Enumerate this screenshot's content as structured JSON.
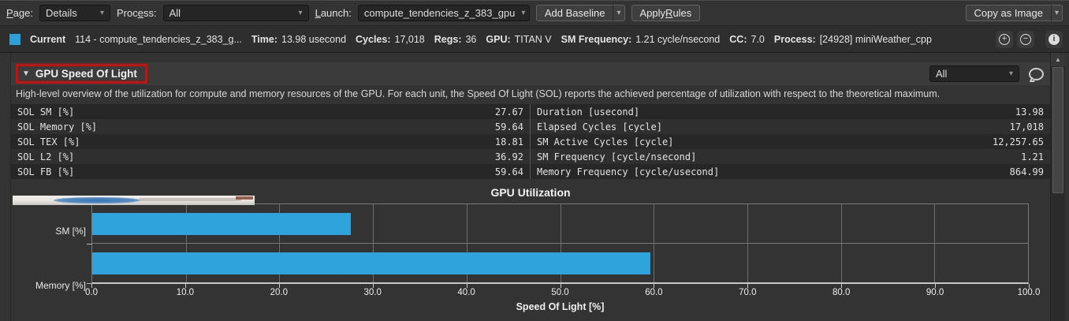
{
  "icons": {
    "dropdown_arrow": "▾",
    "collapse_triangle": "▼",
    "add_circle": "+",
    "remove_circle": "−",
    "info": "i",
    "scroll_up": "▲",
    "comment": "speech-bubble"
  },
  "toolbar": {
    "page_label": {
      "pre": "",
      "key": "P",
      "post": "age:"
    },
    "page_value": "Details",
    "process_label": {
      "pre": "Proc",
      "key": "e",
      "post": "ss:"
    },
    "process_value": "All",
    "launch_label": {
      "pre": "",
      "key": "L",
      "post": "aunch:"
    },
    "launch_value": "compute_tendencies_z_383_gpu",
    "add_baseline_label": "Add Baseline",
    "apply_rules_label": {
      "pre": "Apply ",
      "key": "R",
      "post": "ules"
    },
    "copy_as_image_label": "Copy as Image"
  },
  "current_row": {
    "swatch_color": "#2da0d9",
    "label": "Current",
    "kernel": "114 - compute_tendencies_z_383_g...",
    "metrics": [
      {
        "label": "Time:",
        "value": "13.98 usecond"
      },
      {
        "label": "Cycles:",
        "value": "17,018"
      },
      {
        "label": "Regs:",
        "value": "36"
      },
      {
        "label": "GPU:",
        "value": "TITAN V"
      },
      {
        "label": "SM Frequency:",
        "value": "1.21 cycle/nsecond"
      },
      {
        "label": "CC:",
        "value": "7.0"
      },
      {
        "label": "Process:",
        "value": "[24928] miniWeather_cpp"
      }
    ]
  },
  "section": {
    "title": "GPU Speed Of Light",
    "filter_value": "All",
    "description": "High-level overview of the utilization for compute and memory resources of the GPU. For each unit, the Speed Of Light (SOL) reports the achieved percentage of utilization with respect to the theoretical maximum."
  },
  "metrics_table": {
    "left": [
      {
        "name": "SOL SM [%]",
        "value": "27.67"
      },
      {
        "name": "SOL Memory [%]",
        "value": "59.64"
      },
      {
        "name": "SOL TEX [%]",
        "value": "18.81"
      },
      {
        "name": "SOL L2 [%]",
        "value": "36.92"
      },
      {
        "name": "SOL FB [%]",
        "value": "59.64"
      }
    ],
    "right": [
      {
        "name": "Duration [usecond]",
        "value": "13.98"
      },
      {
        "name": "Elapsed Cycles [cycle]",
        "value": "17,018"
      },
      {
        "name": "SM Active Cycles [cycle]",
        "value": "12,257.65"
      },
      {
        "name": "SM Frequency [cycle/nsecond]",
        "value": "1.21"
      },
      {
        "name": "Memory Frequency [cycle/usecond]",
        "value": "864.99"
      }
    ]
  },
  "chart_data": {
    "type": "bar",
    "orientation": "horizontal",
    "title": "GPU Utilization",
    "categories": [
      "SM [%]",
      "Memory [%]"
    ],
    "values": [
      27.67,
      59.64
    ],
    "xlabel": "Speed Of Light [%]",
    "xlim": [
      0,
      100
    ],
    "xticks": [
      0,
      10,
      20,
      30,
      40,
      50,
      60,
      70,
      80,
      90,
      100
    ],
    "tick_labels": [
      "0.0",
      "10.0",
      "20.0",
      "30.0",
      "40.0",
      "50.0",
      "60.0",
      "70.0",
      "80.0",
      "90.0",
      "100.0"
    ],
    "bar_color": "#2ea3dc",
    "grid": true,
    "legend": "none"
  }
}
